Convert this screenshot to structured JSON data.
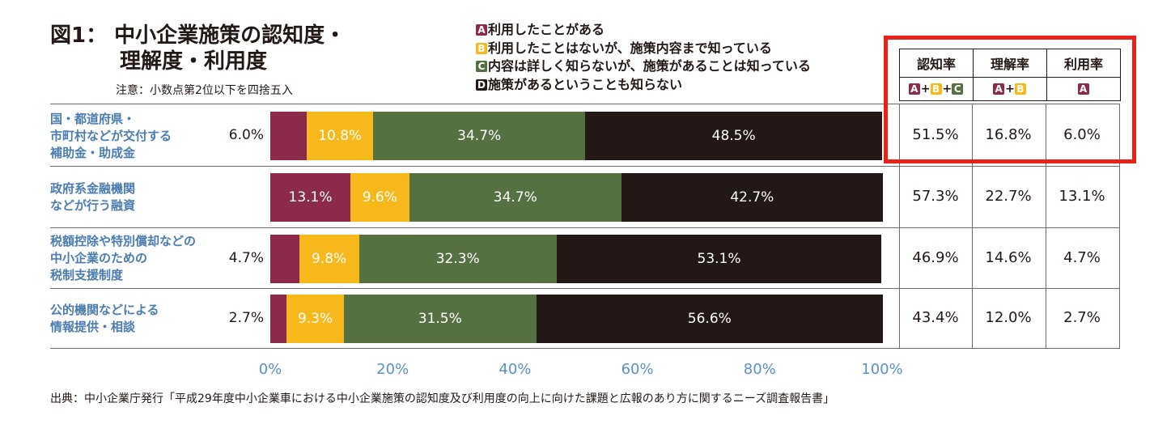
{
  "title": {
    "line1": "図1： 中小企業施策の認知度・",
    "line2": "理解度・利用度"
  },
  "note": "注意：小数点第2位以下を四捨五入",
  "legend": [
    {
      "key": "A",
      "label": "利用したことがある",
      "color": "#8b2a4a"
    },
    {
      "key": "B",
      "label": "利用したことはないが、施策内容まで知っている",
      "color": "#f7b81b"
    },
    {
      "key": "C",
      "label": "内容は詳しく知らないが、施策があることは知っている",
      "color": "#557142"
    },
    {
      "key": "D",
      "label": "施策があるということも知らない",
      "color": "#231815"
    }
  ],
  "table": {
    "headers": [
      "認知率",
      "理解率",
      "利用率"
    ],
    "formulas": [
      [
        "A",
        "B",
        "C"
      ],
      [
        "A",
        "B"
      ],
      [
        "A"
      ]
    ],
    "plus": "+"
  },
  "chart_data": {
    "type": "bar",
    "orientation": "horizontal",
    "stacked": true,
    "categories": [
      [
        "国・都道府県・",
        "市町村などが交付する",
        "補助金・助成金"
      ],
      [
        "政府系金融機関",
        "などが行う融資"
      ],
      [
        "税額控除や特別償却などの",
        "中小企業のための",
        "税制支援制度"
      ],
      [
        "公的機関などによる",
        "情報提供・相談"
      ]
    ],
    "series": [
      {
        "name": "A",
        "values": [
          6.0,
          13.1,
          4.7,
          2.7
        ],
        "labels": [
          "6.0%",
          "13.1%",
          "4.7%",
          "2.7%"
        ]
      },
      {
        "name": "B",
        "values": [
          10.8,
          9.6,
          9.8,
          9.3
        ],
        "labels": [
          "10.8%",
          "9.6%",
          "9.8%",
          "9.3%"
        ]
      },
      {
        "name": "C",
        "values": [
          34.7,
          34.7,
          32.3,
          31.5
        ],
        "labels": [
          "34.7%",
          "34.7%",
          "32.3%",
          "31.5%"
        ]
      },
      {
        "name": "D",
        "values": [
          48.5,
          42.7,
          53.1,
          56.6
        ],
        "labels": [
          "48.5%",
          "42.7%",
          "53.1%",
          "56.6%"
        ]
      }
    ],
    "label_outside_A": [
      true,
      false,
      true,
      true
    ],
    "rates": {
      "recognition": [
        "51.5%",
        "57.3%",
        "46.9%",
        "43.4%"
      ],
      "understanding": [
        "16.8%",
        "22.7%",
        "14.6%",
        "12.0%"
      ],
      "usage": [
        "6.0%",
        "13.1%",
        "4.7%",
        "2.7%"
      ]
    },
    "highlighted_row": 0,
    "xlim": [
      0,
      100
    ],
    "xticks": [
      0,
      20,
      40,
      60,
      80,
      100
    ],
    "xtick_labels": [
      "0%",
      "20%",
      "40%",
      "60%",
      "80%",
      "100%"
    ]
  },
  "source": "出典：中小企業庁発行「平成29年度中小企業車における中小企業施策の認知度及び利用度の向上に向けた課題と広報のあり方に関するニーズ調査報告書」"
}
